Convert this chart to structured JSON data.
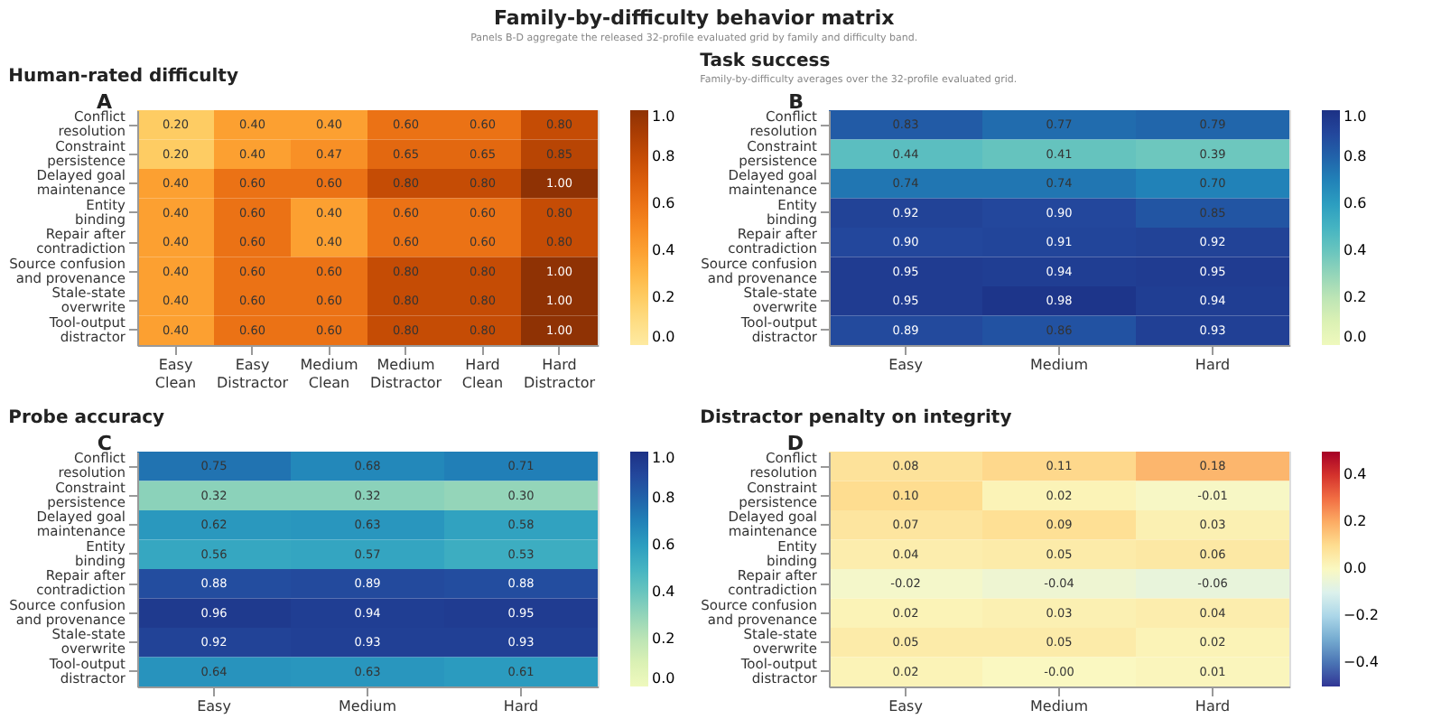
{
  "chart_data": [
    {
      "type": "heatmap",
      "title": "Human-rated difficulty",
      "annotations": [
        "Family-by-difficulty behavior matrix",
        "Panels B-D aggregate the released 32-profile evaluated grid by family and difficulty band.",
        "A"
      ],
      "categories": [
        "Easy Clean",
        "Easy Distractor",
        "Medium Clean",
        "Medium Distractor",
        "Hard Clean",
        "Hard Distractor"
      ],
      "y_categories": [
        "Conflict resolution",
        "Constraint persistence",
        "Delayed goal maintenance",
        "Entity binding",
        "Repair after contradiction",
        "Source confusion and provenance",
        "Stale-state overwrite",
        "Tool-output distractor"
      ],
      "cells": [
        [
          0.2,
          0.4,
          0.4,
          0.6,
          0.6,
          0.8
        ],
        [
          0.2,
          0.4,
          0.47,
          0.65,
          0.65,
          0.85
        ],
        [
          0.4,
          0.6,
          0.6,
          0.8,
          0.8,
          1
        ],
        [
          0.4,
          0.6,
          0.4,
          0.6,
          0.6,
          0.8
        ],
        [
          0.4,
          0.6,
          0.4,
          0.6,
          0.6,
          0.8
        ],
        [
          0.4,
          0.6,
          0.6,
          0.8,
          0.8,
          1
        ],
        [
          0.4,
          0.6,
          0.6,
          0.8,
          0.8,
          1
        ],
        [
          0.4,
          0.6,
          0.6,
          0.8,
          0.8,
          1
        ]
      ],
      "cell_labels": [
        [
          "0.20",
          "0.40",
          "0.40",
          "0.60",
          "0.60",
          "0.80"
        ],
        [
          "0.20",
          "0.40",
          "0.47",
          "0.65",
          "0.65",
          "0.85"
        ],
        [
          "0.40",
          "0.60",
          "0.60",
          "0.80",
          "0.80",
          "1.00"
        ],
        [
          "0.40",
          "0.60",
          "0.40",
          "0.60",
          "0.60",
          "0.80"
        ],
        [
          "0.40",
          "0.60",
          "0.40",
          "0.60",
          "0.60",
          "0.80"
        ],
        [
          "0.40",
          "0.60",
          "0.60",
          "0.80",
          "0.80",
          "1.00"
        ],
        [
          "0.40",
          "0.60",
          "0.60",
          "0.80",
          "0.80",
          "1.00"
        ],
        [
          "0.40",
          "0.60",
          "0.60",
          "0.80",
          "0.80",
          "1.00"
        ]
      ],
      "clim": [
        0,
        1
      ],
      "cticks": [
        {
          "value": 0,
          "label": "0.0"
        },
        {
          "value": 0.2,
          "label": "0.2"
        },
        {
          "value": 0.4,
          "label": "0.4"
        },
        {
          "value": 0.6,
          "label": "0.6"
        },
        {
          "value": 0.8,
          "label": "0.8"
        },
        {
          "value": 1,
          "label": "1.0"
        }
      ]
    },
    {
      "type": "heatmap",
      "title": "Task success",
      "subtitle": "Family-by-difficulty averages over the 32-profile evaluated grid.",
      "annotations": [
        "B"
      ],
      "categories": [
        "Easy",
        "Medium",
        "Hard"
      ],
      "y_categories": [
        "Conflict resolution",
        "Constraint persistence",
        "Delayed goal maintenance",
        "Entity binding",
        "Repair after contradiction",
        "Source confusion and provenance",
        "Stale-state overwrite",
        "Tool-output distractor"
      ],
      "cells": [
        [
          0.83,
          0.77,
          0.79
        ],
        [
          0.44,
          0.41,
          0.39
        ],
        [
          0.74,
          0.74,
          0.7
        ],
        [
          0.92,
          0.9,
          0.85
        ],
        [
          0.9,
          0.91,
          0.92
        ],
        [
          0.95,
          0.94,
          0.95
        ],
        [
          0.95,
          0.98,
          0.94
        ],
        [
          0.89,
          0.86,
          0.93
        ]
      ],
      "cell_labels": [
        [
          "0.83",
          "0.77",
          "0.79"
        ],
        [
          "0.44",
          "0.41",
          "0.39"
        ],
        [
          "0.74",
          "0.74",
          "0.70"
        ],
        [
          "0.92",
          "0.90",
          "0.85"
        ],
        [
          "0.90",
          "0.91",
          "0.92"
        ],
        [
          "0.95",
          "0.94",
          "0.95"
        ],
        [
          "0.95",
          "0.98",
          "0.94"
        ],
        [
          "0.89",
          "0.86",
          "0.93"
        ]
      ],
      "clim": [
        0,
        1
      ],
      "cticks": [
        {
          "value": 0,
          "label": "0.0"
        },
        {
          "value": 0.2,
          "label": "0.2"
        },
        {
          "value": 0.4,
          "label": "0.4"
        },
        {
          "value": 0.6,
          "label": "0.6"
        },
        {
          "value": 0.8,
          "label": "0.8"
        },
        {
          "value": 1,
          "label": "1.0"
        }
      ]
    },
    {
      "type": "heatmap",
      "title": "Probe accuracy",
      "annotations": [
        "C"
      ],
      "categories": [
        "Easy",
        "Medium",
        "Hard"
      ],
      "y_categories": [
        "Conflict resolution",
        "Constraint persistence",
        "Delayed goal maintenance",
        "Entity binding",
        "Repair after contradiction",
        "Source confusion and provenance",
        "Stale-state overwrite",
        "Tool-output distractor"
      ],
      "cells": [
        [
          0.75,
          0.68,
          0.71
        ],
        [
          0.32,
          0.32,
          0.3
        ],
        [
          0.62,
          0.63,
          0.58
        ],
        [
          0.56,
          0.57,
          0.53
        ],
        [
          0.88,
          0.89,
          0.88
        ],
        [
          0.96,
          0.94,
          0.95
        ],
        [
          0.92,
          0.93,
          0.93
        ],
        [
          0.64,
          0.63,
          0.61
        ]
      ],
      "cell_labels": [
        [
          "0.75",
          "0.68",
          "0.71"
        ],
        [
          "0.32",
          "0.32",
          "0.30"
        ],
        [
          "0.62",
          "0.63",
          "0.58"
        ],
        [
          "0.56",
          "0.57",
          "0.53"
        ],
        [
          "0.88",
          "0.89",
          "0.88"
        ],
        [
          "0.96",
          "0.94",
          "0.95"
        ],
        [
          "0.92",
          "0.93",
          "0.93"
        ],
        [
          "0.64",
          "0.63",
          "0.61"
        ]
      ],
      "clim": [
        0,
        1
      ],
      "cticks": [
        {
          "value": 0,
          "label": "0.0"
        },
        {
          "value": 0.2,
          "label": "0.2"
        },
        {
          "value": 0.4,
          "label": "0.4"
        },
        {
          "value": 0.6,
          "label": "0.6"
        },
        {
          "value": 0.8,
          "label": "0.8"
        },
        {
          "value": 1,
          "label": "1.0"
        }
      ]
    },
    {
      "type": "heatmap",
      "title": "Distractor penalty on integrity",
      "annotations": [
        "D"
      ],
      "categories": [
        "Easy",
        "Medium",
        "Hard"
      ],
      "y_categories": [
        "Conflict resolution",
        "Constraint persistence",
        "Delayed goal maintenance",
        "Entity binding",
        "Repair after contradiction",
        "Source confusion and provenance",
        "Stale-state overwrite",
        "Tool-output distractor"
      ],
      "cells": [
        [
          0.08,
          0.11,
          0.18
        ],
        [
          0.1,
          0.02,
          -0.01
        ],
        [
          0.07,
          0.09,
          0.03
        ],
        [
          0.04,
          0.05,
          0.06
        ],
        [
          -0.02,
          -0.04,
          -0.06
        ],
        [
          0.02,
          0.03,
          0.04
        ],
        [
          0.05,
          0.05,
          0.02
        ],
        [
          0.02,
          0,
          0.01
        ]
      ],
      "cell_labels": [
        [
          "0.08",
          "0.11",
          "0.18"
        ],
        [
          "0.10",
          "0.02",
          "-0.01"
        ],
        [
          "0.07",
          "0.09",
          "0.03"
        ],
        [
          "0.04",
          "0.05",
          "0.06"
        ],
        [
          "-0.02",
          "-0.04",
          "-0.06"
        ],
        [
          "0.02",
          "0.03",
          "0.04"
        ],
        [
          "0.05",
          "0.05",
          "0.02"
        ],
        [
          "0.02",
          "-0.00",
          "0.01"
        ]
      ],
      "clim": [
        -0.5,
        0.5
      ],
      "cticks": [
        {
          "value": -0.4,
          "label": "−0.4"
        },
        {
          "value": -0.2,
          "label": "−0.2"
        },
        {
          "value": 0,
          "label": "0.0"
        },
        {
          "value": 0.2,
          "label": "0.2"
        },
        {
          "value": 0.4,
          "label": "0.4"
        }
      ]
    }
  ]
}
